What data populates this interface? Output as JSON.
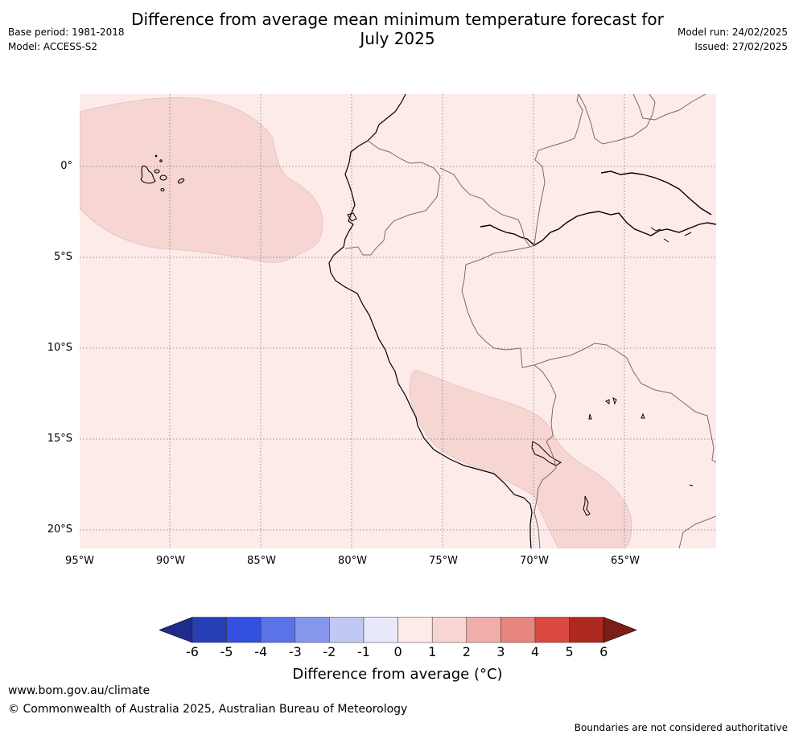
{
  "title_line1": "Difference from average mean minimum temperature forecast for",
  "title_line2": "July 2025",
  "base_period": "Base period: 1981-2018",
  "model": "Model: ACCESS-S2",
  "model_run": "Model run: 24/02/2025",
  "issued": "Issued: 27/02/2025",
  "lat_labels": [
    "0°",
    "5°S",
    "10°S",
    "15°S",
    "20°S"
  ],
  "lon_labels": [
    "95°W",
    "90°W",
    "85°W",
    "80°W",
    "75°W",
    "70°W",
    "65°W"
  ],
  "colorbar": {
    "ticks": [
      "-6",
      "-5",
      "-4",
      "-3",
      "-2",
      "-1",
      "0",
      "1",
      "2",
      "3",
      "4",
      "5",
      "6"
    ],
    "colors": [
      "#1e2d8c",
      "#263fb4",
      "#3350e0",
      "#5a74e8",
      "#8696ec",
      "#c2c8f4",
      "#e8eafb",
      "#fcebe9",
      "#f6d5d3",
      "#f0aeaa",
      "#e8857f",
      "#da4a40",
      "#ad2820",
      "#7a1e18"
    ],
    "label": "Difference from average (°C)"
  },
  "map_colors": {
    "background": "#fcebe9",
    "anomaly_1_2": "#f6d5d3",
    "coast": "#000000",
    "border": "#7a6a6a",
    "grid": "#777777"
  },
  "anomaly_regions": [
    "eastern Pacific near Galápagos: +1 to +2 °C",
    "southern Peru / Altiplano / northern Chile: +1 to +2 °C",
    "remainder of map: 0 to +1 °C"
  ],
  "footer_url": "www.bom.gov.au/climate",
  "footer_copyright": "© Commonwealth of Australia 2025, Australian Bureau of Meteorology",
  "footer_disclaimer": "Boundaries are not considered authoritative"
}
